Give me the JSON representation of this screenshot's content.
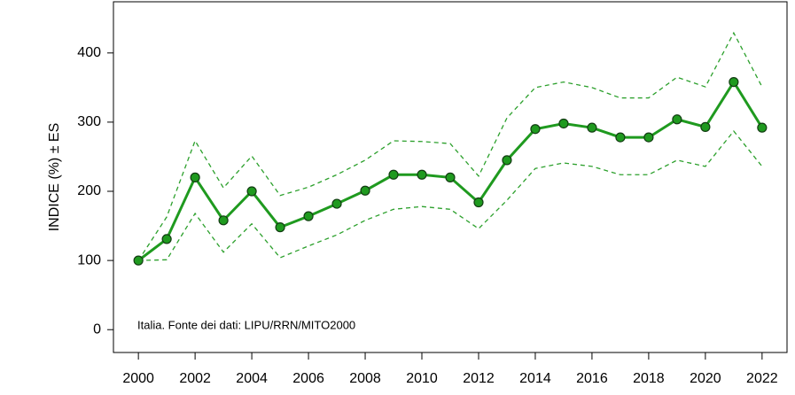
{
  "chart_data": {
    "type": "line",
    "y_label": "INDICE (%) ± ES",
    "annotation": "Italia. Fonte dei dati: LIPU/RRN/MITO2000",
    "x": [
      2000,
      2001,
      2002,
      2003,
      2004,
      2005,
      2006,
      2007,
      2008,
      2009,
      2010,
      2011,
      2012,
      2013,
      2014,
      2015,
      2016,
      2017,
      2018,
      2019,
      2020,
      2021,
      2022
    ],
    "series": [
      {
        "color": "#2ca02c",
        "style": "dashed",
        "values": [
          100,
          163,
          273,
          205,
          251,
          194,
          206,
          224,
          245,
          273,
          272,
          269,
          222,
          306,
          350,
          358,
          350,
          335,
          335,
          365,
          351,
          429,
          351
        ]
      },
      {
        "color": "#2ca02c",
        "style": "dashed",
        "values": [
          100,
          101,
          168,
          112,
          153,
          104,
          121,
          137,
          158,
          174,
          178,
          174,
          146,
          187,
          233,
          241,
          236,
          224,
          224,
          245,
          236,
          287,
          236
        ]
      },
      {
        "color": "#1f9a1f",
        "style": "solid-points",
        "values": [
          100,
          131,
          220,
          158,
          200,
          148,
          164,
          182,
          201,
          224,
          224,
          220,
          184,
          245,
          290,
          298,
          292,
          278,
          278,
          304,
          293,
          358,
          292
        ]
      }
    ],
    "xlim": [
      1999.12,
      2022.88
    ],
    "xticks": [
      2000,
      2002,
      2004,
      2006,
      2008,
      2010,
      2012,
      2014,
      2016,
      2018,
      2020,
      2022
    ],
    "ylim": [
      -33,
      474
    ],
    "yticks": [
      0,
      100,
      200,
      300,
      400
    ]
  }
}
